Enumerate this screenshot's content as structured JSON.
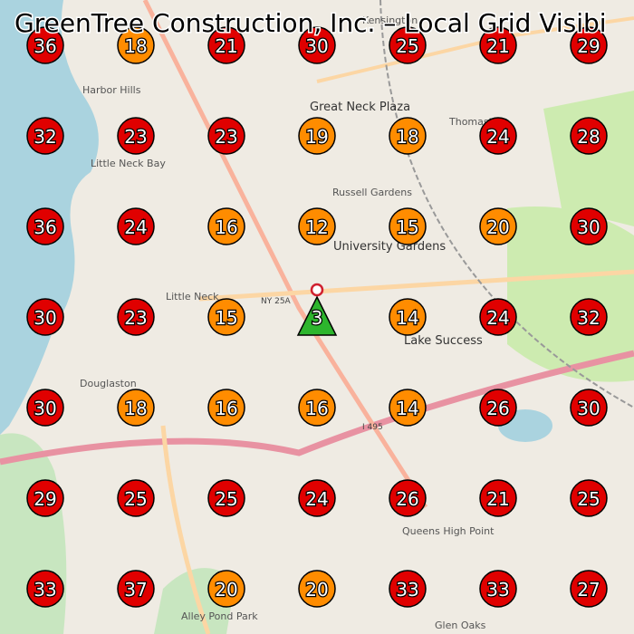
{
  "title": "GreenTree Construction, Inc. – Local Grid Visibi",
  "places": [
    "Great Neck Plaza",
    "Russell Gardens",
    "University Gardens",
    "Lake Success",
    "Little Neck",
    "Douglaston",
    "Harbor Hills",
    "Kensington",
    "Thomaston",
    "Queens High Point",
    "Glen Oaks",
    "Alley Pond Park",
    "Little Neck Bay",
    "NY 25A",
    "I 495"
  ],
  "grid": [
    [
      {
        "value": 36,
        "color": "#e00000"
      },
      {
        "value": 18,
        "color": "#ff8c00"
      },
      {
        "value": 21,
        "color": "#e00000"
      },
      {
        "value": 30,
        "color": "#e00000"
      },
      {
        "value": 25,
        "color": "#e00000"
      },
      {
        "value": 21,
        "color": "#e00000"
      },
      {
        "value": 29,
        "color": "#e00000"
      }
    ],
    [
      {
        "value": 32,
        "color": "#e00000"
      },
      {
        "value": 23,
        "color": "#e00000"
      },
      {
        "value": 23,
        "color": "#e00000"
      },
      {
        "value": 19,
        "color": "#ff8c00"
      },
      {
        "value": 18,
        "color": "#ff8c00"
      },
      {
        "value": 24,
        "color": "#e00000"
      },
      {
        "value": 28,
        "color": "#e00000"
      }
    ],
    [
      {
        "value": 36,
        "color": "#e00000"
      },
      {
        "value": 24,
        "color": "#e00000"
      },
      {
        "value": 16,
        "color": "#ff8c00"
      },
      {
        "value": 12,
        "color": "#ff8c00"
      },
      {
        "value": 15,
        "color": "#ff8c00"
      },
      {
        "value": 20,
        "color": "#ff8c00"
      },
      {
        "value": 30,
        "color": "#e00000"
      }
    ],
    [
      {
        "value": 30,
        "color": "#e00000"
      },
      {
        "value": 23,
        "color": "#e00000"
      },
      {
        "value": 15,
        "color": "#ff8c00"
      },
      {
        "value": 3,
        "color": "#2db52d",
        "shape": "triangle"
      },
      {
        "value": 14,
        "color": "#ff8c00"
      },
      {
        "value": 24,
        "color": "#e00000"
      },
      {
        "value": 32,
        "color": "#e00000"
      }
    ],
    [
      {
        "value": 30,
        "color": "#e00000"
      },
      {
        "value": 18,
        "color": "#ff8c00"
      },
      {
        "value": 16,
        "color": "#ff8c00"
      },
      {
        "value": 16,
        "color": "#ff8c00"
      },
      {
        "value": 14,
        "color": "#ff8c00"
      },
      {
        "value": 26,
        "color": "#e00000"
      },
      {
        "value": 30,
        "color": "#e00000"
      }
    ],
    [
      {
        "value": 29,
        "color": "#e00000"
      },
      {
        "value": 25,
        "color": "#e00000"
      },
      {
        "value": 25,
        "color": "#e00000"
      },
      {
        "value": 24,
        "color": "#e00000"
      },
      {
        "value": 26,
        "color": "#e00000"
      },
      {
        "value": 21,
        "color": "#e00000"
      },
      {
        "value": 25,
        "color": "#e00000"
      }
    ],
    [
      {
        "value": 33,
        "color": "#e00000"
      },
      {
        "value": 37,
        "color": "#e00000"
      },
      {
        "value": 20,
        "color": "#ff8c00"
      },
      {
        "value": 20,
        "color": "#ff8c00"
      },
      {
        "value": 33,
        "color": "#e00000"
      },
      {
        "value": 33,
        "color": "#e00000"
      },
      {
        "value": 27,
        "color": "#e00000"
      }
    ]
  ]
}
